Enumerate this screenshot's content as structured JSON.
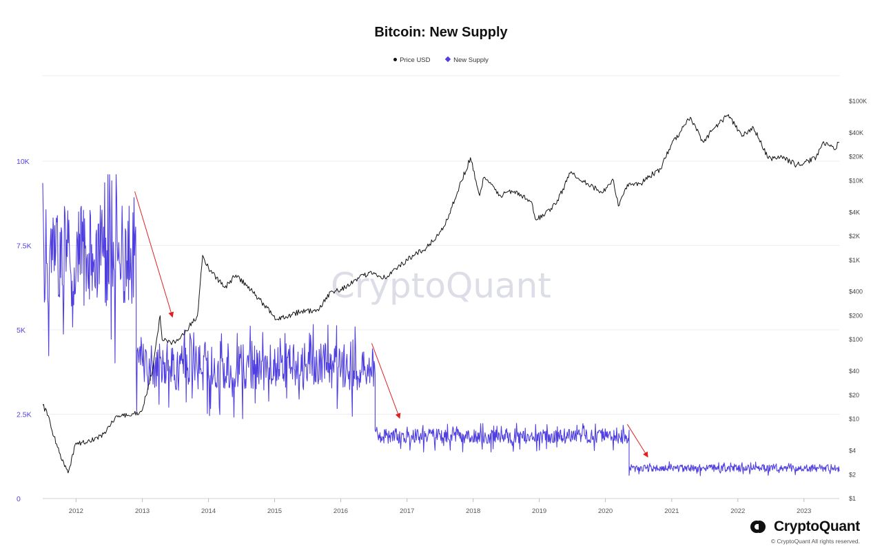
{
  "title": "Bitcoin: New Supply",
  "legend": {
    "price_label": "Price USD",
    "supply_label": "New Supply"
  },
  "brand": {
    "name": "CryptoQuant",
    "copyright": "© CryptoQuant All rights reserved.",
    "watermark": "CryptoQuant"
  },
  "colors": {
    "supply": "#4f3fe0",
    "price": "#111111",
    "arrow": "#e02020",
    "grid": "#ececf2"
  },
  "chart_data": {
    "type": "line",
    "title": "Bitcoin: New Supply",
    "x_range": [
      "2011-07-01",
      "2023-07-15"
    ],
    "x_ticks": [
      "2012",
      "2013",
      "2014",
      "2015",
      "2016",
      "2017",
      "2018",
      "2019",
      "2020",
      "2021",
      "2022",
      "2023"
    ],
    "y_left": {
      "range": [
        0,
        10000
      ],
      "ticks": [
        0,
        2500,
        5000,
        7500,
        10000
      ],
      "tick_labels": [
        "0",
        "2.5K",
        "5K",
        "7.5K",
        "10K"
      ]
    },
    "y_right": {
      "scale": "log",
      "ticks": [
        1,
        2,
        4,
        10,
        20,
        40,
        100,
        200,
        400,
        1000,
        2000,
        4000,
        10000,
        20000,
        40000,
        100000
      ],
      "tick_labels": [
        "$1",
        "$2",
        "$4",
        "$10",
        "$20",
        "$40",
        "$100",
        "$200",
        "$400",
        "$1K",
        "$2K",
        "$4K",
        "$10K",
        "$20K",
        "$40K",
        "$100K"
      ]
    },
    "legend_position": "top-center",
    "grid": true,
    "series": [
      {
        "name": "New Supply",
        "axis": "left",
        "regimes": [
          {
            "from": "2011-07-01",
            "to": "2012-11-28",
            "mean": 7200,
            "spread": 1500,
            "max": 9600
          },
          {
            "from": "2012-11-28",
            "to": "2016-07-09",
            "mean": 3900,
            "spread": 700,
            "max": 5400
          },
          {
            "from": "2016-07-09",
            "to": "2020-05-11",
            "mean": 1850,
            "spread": 220,
            "max": 2450
          },
          {
            "from": "2020-05-11",
            "to": "2023-07-15",
            "mean": 900,
            "spread": 110,
            "max": 1250
          }
        ]
      },
      {
        "name": "Price USD",
        "axis": "right",
        "points": [
          [
            "2011-07-01",
            15
          ],
          [
            "2011-08-01",
            11
          ],
          [
            "2011-09-01",
            6
          ],
          [
            "2011-10-15",
            3
          ],
          [
            "2011-11-18",
            2.1
          ],
          [
            "2012-01-01",
            5
          ],
          [
            "2012-03-01",
            5
          ],
          [
            "2012-06-01",
            6.5
          ],
          [
            "2012-08-15",
            11
          ],
          [
            "2012-11-01",
            11
          ],
          [
            "2013-01-01",
            13
          ],
          [
            "2013-03-01",
            45
          ],
          [
            "2013-04-09",
            200
          ],
          [
            "2013-04-20",
            100
          ],
          [
            "2013-07-01",
            90
          ],
          [
            "2013-09-01",
            130
          ],
          [
            "2013-11-01",
            200
          ],
          [
            "2013-11-30",
            1150
          ],
          [
            "2014-01-01",
            800
          ],
          [
            "2014-04-01",
            450
          ],
          [
            "2014-06-01",
            650
          ],
          [
            "2014-09-01",
            400
          ],
          [
            "2015-01-14",
            180
          ],
          [
            "2015-06-01",
            230
          ],
          [
            "2015-09-01",
            230
          ],
          [
            "2015-11-05",
            400
          ],
          [
            "2016-01-01",
            430
          ],
          [
            "2016-06-17",
            720
          ],
          [
            "2016-09-01",
            600
          ],
          [
            "2017-01-01",
            1000
          ],
          [
            "2017-05-01",
            1500
          ],
          [
            "2017-08-01",
            2800
          ],
          [
            "2017-09-01",
            4500
          ],
          [
            "2017-12-17",
            19500
          ],
          [
            "2018-02-06",
            6500
          ],
          [
            "2018-03-01",
            11000
          ],
          [
            "2018-06-01",
            6500
          ],
          [
            "2018-08-01",
            7500
          ],
          [
            "2018-11-15",
            5500
          ],
          [
            "2018-12-15",
            3200
          ],
          [
            "2019-04-01",
            5000
          ],
          [
            "2019-06-26",
            13000
          ],
          [
            "2019-09-01",
            10000
          ],
          [
            "2019-12-15",
            7000
          ],
          [
            "2020-02-15",
            10000
          ],
          [
            "2020-03-12",
            4800
          ],
          [
            "2020-05-01",
            9000
          ],
          [
            "2020-07-15",
            9200
          ],
          [
            "2020-09-01",
            11500
          ],
          [
            "2020-11-01",
            14000
          ],
          [
            "2021-01-01",
            29000
          ],
          [
            "2021-04-14",
            63000
          ],
          [
            "2021-06-22",
            31000
          ],
          [
            "2021-09-01",
            48000
          ],
          [
            "2021-11-10",
            68000
          ],
          [
            "2022-01-24",
            36000
          ],
          [
            "2022-03-28",
            47000
          ],
          [
            "2022-06-18",
            19000
          ],
          [
            "2022-09-01",
            20000
          ],
          [
            "2022-11-21",
            15800
          ],
          [
            "2023-01-01",
            16500
          ],
          [
            "2023-03-10",
            20000
          ],
          [
            "2023-04-14",
            30000
          ],
          [
            "2023-06-15",
            25000
          ],
          [
            "2023-07-15",
            30500
          ]
        ]
      }
    ],
    "annotations": [
      {
        "type": "arrow",
        "axis": "left",
        "from": [
          "2012-11-20",
          9100
        ],
        "to": [
          "2013-06-15",
          5400
        ]
      },
      {
        "type": "arrow",
        "axis": "left",
        "from": [
          "2016-06-20",
          4600
        ],
        "to": [
          "2016-11-20",
          2400
        ]
      },
      {
        "type": "arrow",
        "axis": "left",
        "from": [
          "2020-05-01",
          2200
        ],
        "to": [
          "2020-08-20",
          1250
        ]
      }
    ]
  }
}
